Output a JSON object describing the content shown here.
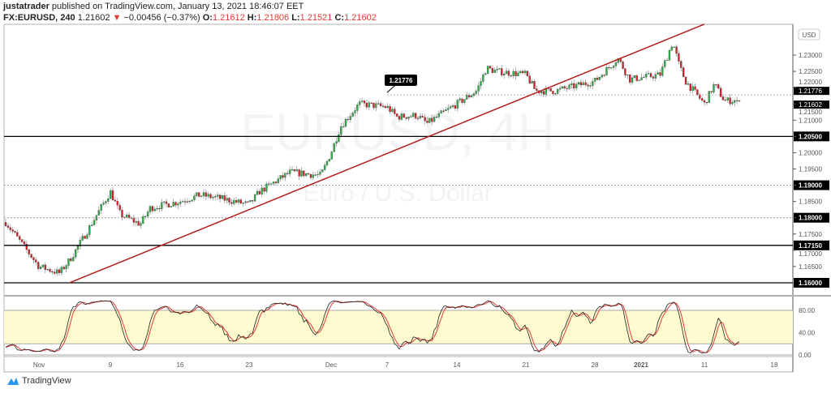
{
  "header": {
    "author": "justatrader",
    "published": " published on TradingView.com, January 13, 2021 18:46:07 EET",
    "symbol": "FX:EURUSD, 240",
    "last": "1.21602",
    "change": "−0.00456 (−0.37%)",
    "o_label": "O:",
    "o": "1.21612",
    "h_label": "H:",
    "h": "1.21806",
    "l_label": "L:",
    "l": "1.21521",
    "c_label": "C:",
    "c": "1.21602",
    "down_arrow_icon": "triangle-down-icon"
  },
  "watermark": {
    "symbol": "EURUSD, 4H",
    "name": "Euro / U.S. Dollar"
  },
  "currency_badge": "USD",
  "footer": {
    "brand": "TradingView"
  },
  "colors": {
    "up": "#2fb34a",
    "down": "#dd1f26",
    "trendline": "#b71c1c",
    "stoch_k": "#222222",
    "stoch_d": "#e53935",
    "band": "#fffbd0"
  },
  "chart_data": {
    "type": "candlestick",
    "interval": "240",
    "price_axis": {
      "ticks": [
        "1.16500",
        "1.17000",
        "1.17500",
        "1.18000",
        "1.18500",
        "1.19000",
        "1.19500",
        "1.20000",
        "1.20500",
        "1.21000",
        "1.21500",
        "1.22000",
        "1.22500",
        "1.23000"
      ],
      "range": [
        1.1575,
        1.2395
      ]
    },
    "time_axis": {
      "ticks": [
        {
          "label": "Nov",
          "date": "2020-11-02"
        },
        {
          "label": "9",
          "date": "2020-11-09"
        },
        {
          "label": "16",
          "date": "2020-11-16"
        },
        {
          "label": "23",
          "date": "2020-11-23"
        },
        {
          "label": "Dec",
          "date": "2020-12-01"
        },
        {
          "label": "7",
          "date": "2020-12-07"
        },
        {
          "label": "14",
          "date": "2020-12-14"
        },
        {
          "label": "21",
          "date": "2020-12-21"
        },
        {
          "label": "28",
          "date": "2020-12-28"
        },
        {
          "label": "2021",
          "date": "2021-01-01"
        },
        {
          "label": "11",
          "date": "2021-01-11"
        },
        {
          "label": "18",
          "date": "2021-01-18"
        }
      ]
    },
    "approx_closes": [
      [
        "2020-10-30",
        1.1775
      ],
      [
        "2020-11-02",
        1.165
      ],
      [
        "2020-11-04",
        1.163
      ],
      [
        "2020-11-05",
        1.167
      ],
      [
        "2020-11-06",
        1.172
      ],
      [
        "2020-11-09",
        1.188
      ],
      [
        "2020-11-10",
        1.181
      ],
      [
        "2020-11-12",
        1.178
      ],
      [
        "2020-11-13",
        1.183
      ],
      [
        "2020-11-16",
        1.185
      ],
      [
        "2020-11-18",
        1.187
      ],
      [
        "2020-11-20",
        1.186
      ],
      [
        "2020-11-23",
        1.184
      ],
      [
        "2020-11-24",
        1.188
      ],
      [
        "2020-11-26",
        1.192
      ],
      [
        "2020-11-27",
        1.194
      ],
      [
        "2020-11-30",
        1.193
      ],
      [
        "2020-12-01",
        1.2
      ],
      [
        "2020-12-02",
        1.208
      ],
      [
        "2020-12-04",
        1.215
      ],
      [
        "2020-12-07",
        1.214
      ],
      [
        "2020-12-08",
        1.211
      ],
      [
        "2020-12-10",
        1.2115
      ],
      [
        "2020-12-11",
        1.209
      ],
      [
        "2020-12-14",
        1.215
      ],
      [
        "2020-12-16",
        1.219
      ],
      [
        "2020-12-17",
        1.226
      ],
      [
        "2020-12-18",
        1.225
      ],
      [
        "2020-12-21",
        1.224
      ],
      [
        "2020-12-22",
        1.219
      ],
      [
        "2020-12-24",
        1.219
      ],
      [
        "2020-12-28",
        1.222
      ],
      [
        "2020-12-30",
        1.229
      ],
      [
        "2020-12-31",
        1.2225
      ],
      [
        "2021-01-04",
        1.224
      ],
      [
        "2021-01-06",
        1.234
      ],
      [
        "2021-01-07",
        1.227
      ],
      [
        "2021-01-08",
        1.222
      ],
      [
        "2021-01-11",
        1.215
      ],
      [
        "2021-01-12",
        1.221
      ],
      [
        "2021-01-13",
        1.216
      ]
    ],
    "horizontal_lines": [
      {
        "price": 1.205,
        "label": "1.20500",
        "style": "solid"
      },
      {
        "price": 1.19,
        "label": "1.19000",
        "style": "dotted"
      },
      {
        "price": 1.18,
        "label": "1.18000",
        "style": "dotted"
      },
      {
        "price": 1.1715,
        "label": "1.17150",
        "style": "solid"
      },
      {
        "price": 1.16,
        "label": "1.16000",
        "style": "solid"
      }
    ],
    "price_marker": {
      "price": 1.21776,
      "label": "1.21776",
      "from_date": "2020-12-07"
    },
    "last_price": {
      "price": 1.21602,
      "label": "1.21602"
    },
    "trendline": [
      [
        "2020-11-05",
        1.16
      ],
      [
        "2021-01-11",
        1.2395
      ]
    ],
    "oscillator": {
      "type": "stochastic",
      "ticks": [
        "80.00",
        "40.00",
        "0.00"
      ],
      "range": [
        0,
        100
      ],
      "band": [
        20,
        80
      ]
    }
  }
}
